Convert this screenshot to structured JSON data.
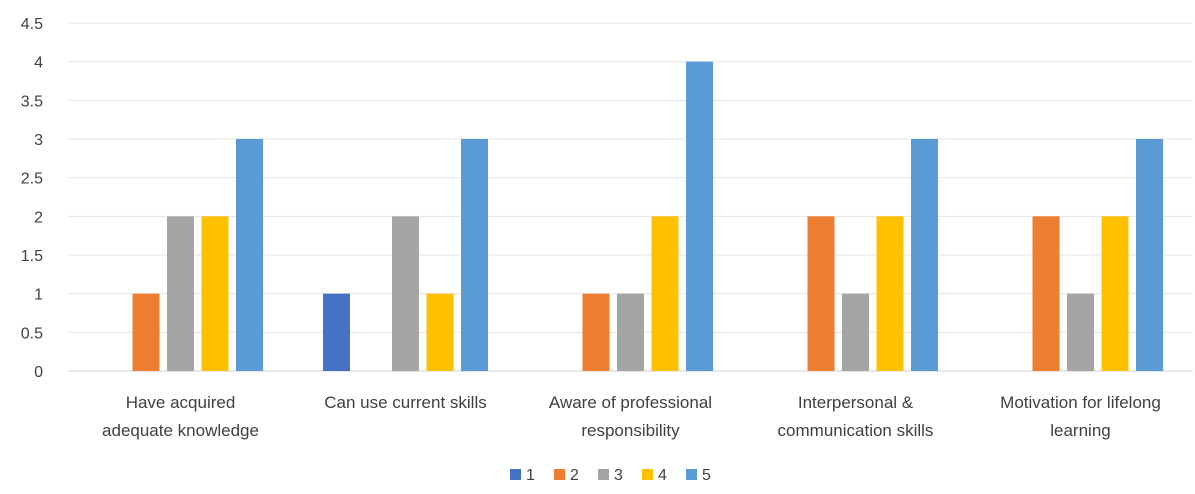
{
  "chart_data": {
    "type": "bar",
    "title": "",
    "xlabel": "",
    "ylabel": "",
    "categories": [
      [
        "Have acquired",
        "adequate knowledge"
      ],
      [
        "Can use current skills"
      ],
      [
        "Aware of professional",
        "responsibility"
      ],
      [
        "Interpersonal &",
        "communication skills"
      ],
      [
        "Motivation for lifelong",
        "learning"
      ]
    ],
    "series": [
      {
        "name": "1",
        "color": "#4472C4",
        "values": [
          0,
          1,
          0,
          0,
          0
        ]
      },
      {
        "name": "2",
        "color": "#ED7D31",
        "values": [
          1,
          0,
          1,
          2,
          2
        ]
      },
      {
        "name": "3",
        "color": "#A5A5A5",
        "values": [
          2,
          2,
          1,
          1,
          1
        ]
      },
      {
        "name": "4",
        "color": "#FFC000",
        "values": [
          2,
          1,
          2,
          2,
          2
        ]
      },
      {
        "name": "5",
        "color": "#5B9BD5",
        "values": [
          3,
          3,
          4,
          3,
          3
        ]
      }
    ],
    "ylim": [
      0,
      4.5
    ],
    "yticks": [
      0,
      0.5,
      1,
      1.5,
      2,
      2.5,
      3,
      3.5,
      4,
      4.5
    ],
    "grid": true,
    "legend_position": "bottom"
  }
}
